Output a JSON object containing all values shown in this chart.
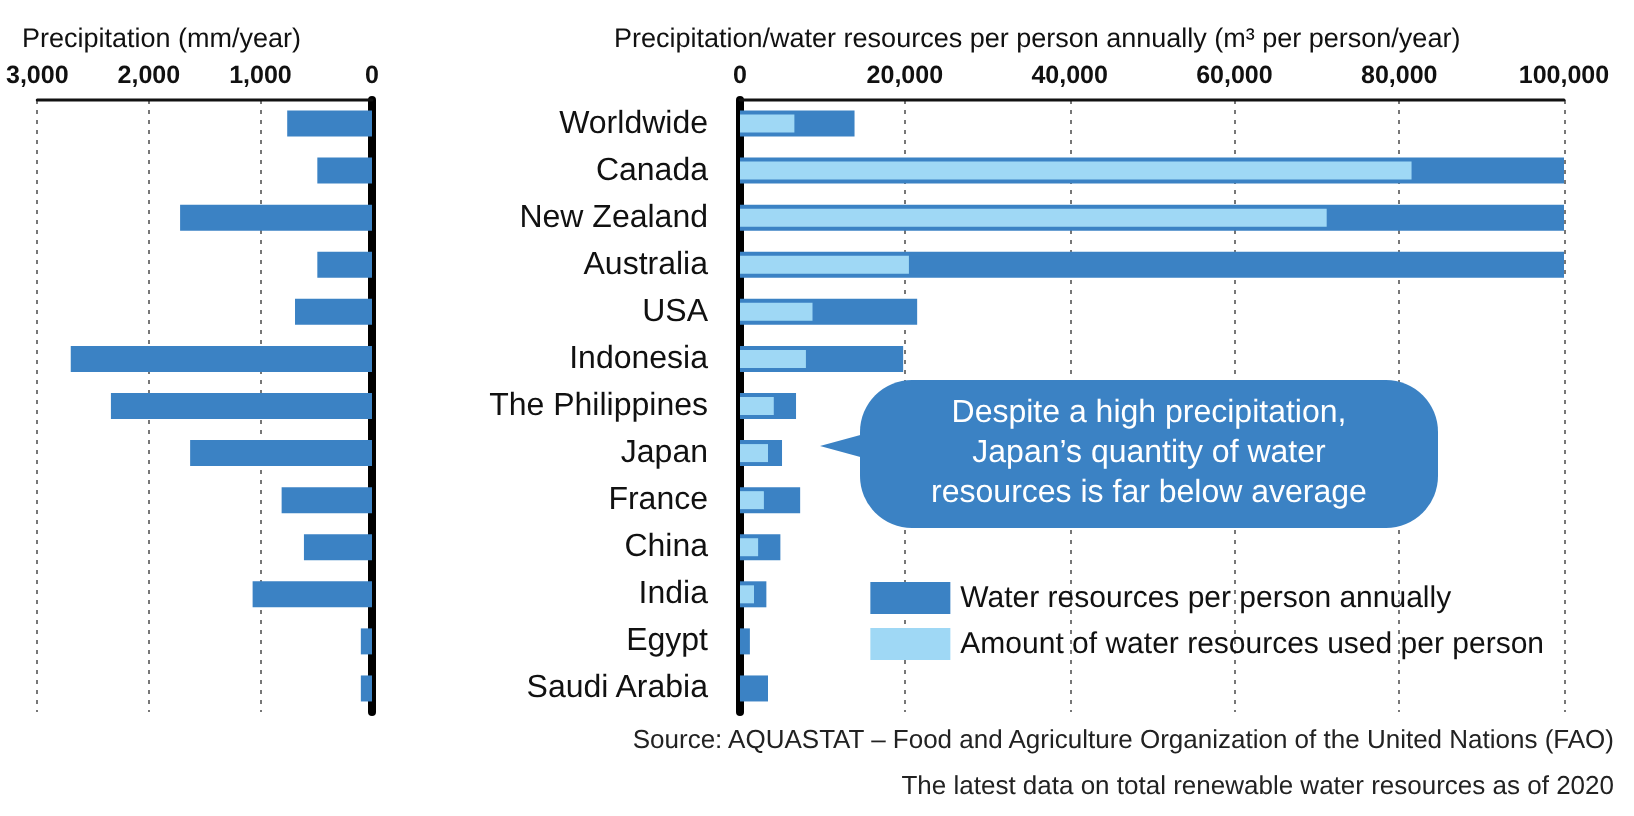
{
  "chart_data": [
    {
      "type": "bar",
      "orientation": "horizontal",
      "title": "Precipitation (mm/year)",
      "categories": [
        null,
        null,
        null,
        null,
        null,
        null,
        null,
        null,
        null,
        null,
        null,
        null,
        null
      ],
      "values": [
        760,
        490,
        1720,
        490,
        690,
        2700,
        2340,
        1630,
        810,
        610,
        1070,
        100,
        100
      ],
      "color": "#3b82c4",
      "xlim": [
        3000,
        0
      ],
      "xticks": [
        {
          "value": 3000,
          "label": "3,000"
        },
        {
          "value": 2000,
          "label": "2,000"
        },
        {
          "value": 1000,
          "label": "1,000"
        },
        0
      ],
      "grid": "x",
      "tick_labels": "x"
    },
    {
      "type": "bar",
      "orientation": "horizontal",
      "title": "Precipitation/water resources per person annually (m³ per person/year)",
      "categories": [
        "Worldwide",
        "Canada",
        "New Zealand",
        "Australia",
        "USA",
        "Indonesia",
        "The Philippines",
        "Japan",
        "France",
        "China",
        "India",
        "Egypt",
        "Saudi Arabia"
      ],
      "series": [
        {
          "name": "Water resources per person annually",
          "color": "#3b82c4",
          "values": [
            13900,
            100000,
            100000,
            100000,
            21500,
            19800,
            6800,
            5100,
            7300,
            4900,
            3200,
            1200,
            3400
          ]
        },
        {
          "name": "Amount of water resources used per person",
          "color": "#9fd8f5",
          "values": [
            6600,
            81500,
            71200,
            20500,
            8800,
            8000,
            4100,
            3400,
            2900,
            2200,
            1700,
            null,
            null
          ]
        }
      ],
      "xlim": [
        0,
        100000
      ],
      "xticks": [
        0,
        {
          "value": 20000,
          "label": "20,000"
        },
        {
          "value": 40000,
          "label": "40,000"
        },
        {
          "value": 60000,
          "label": "60,000"
        },
        {
          "value": 80000,
          "label": "80,000"
        },
        {
          "value": 100000,
          "label": "100,000"
        }
      ],
      "grid": "x",
      "legend": "bottom right",
      "annotations": [
        "Despite a high precipitation, Japan’s quantity of water resources is far below average",
        "Source: AQUASTAT – Food and Agriculture Organization of the United Nations (FAO)",
        "The latest data on total renewable water resources as of 2020"
      ]
    }
  ]
}
